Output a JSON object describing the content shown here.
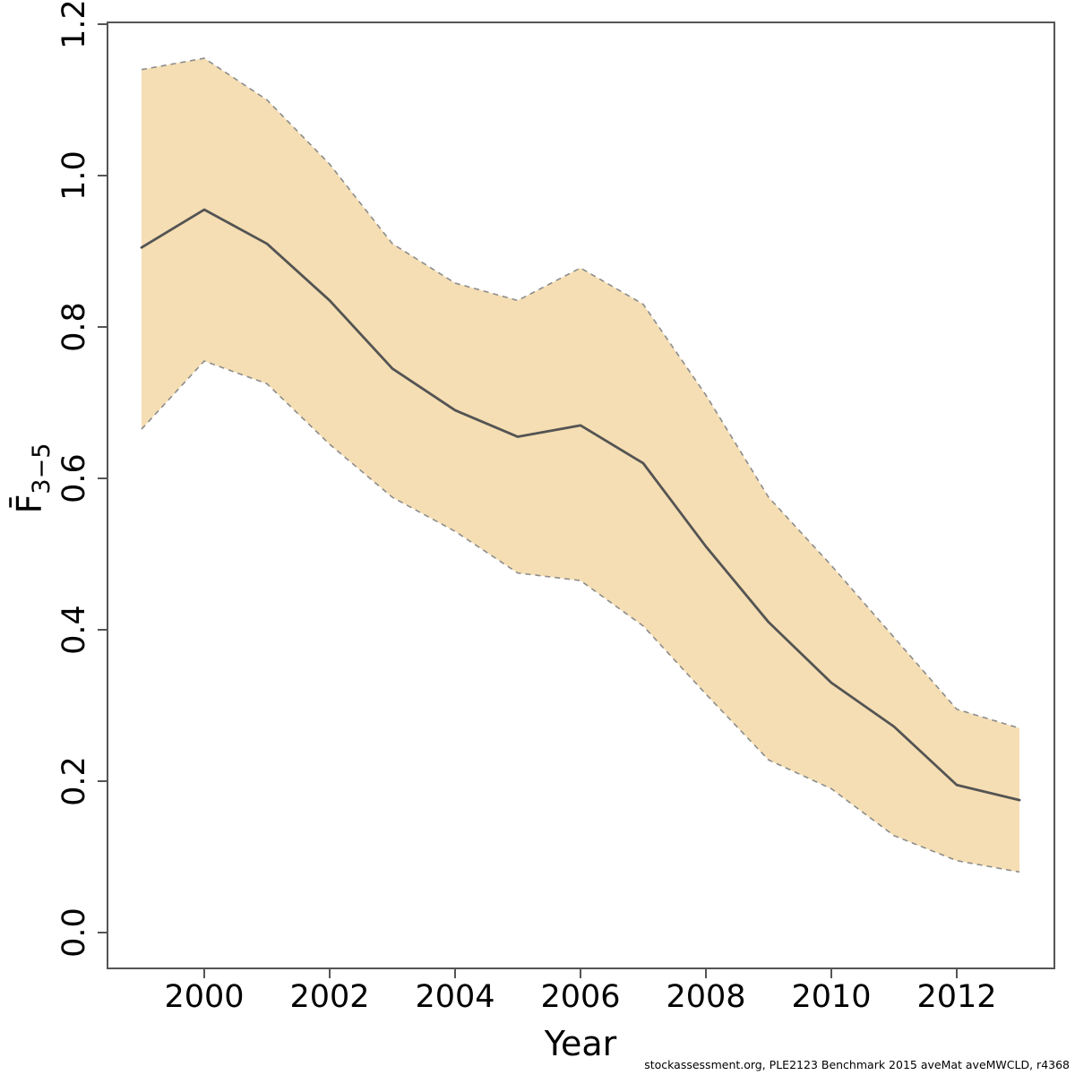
{
  "figure": {
    "footer": "stockassessment.org, PLE2123 Benchmark 2015 aveMat aveMWCLD, r4368"
  },
  "chart_data": {
    "type": "line",
    "title": "",
    "xlabel": "Year",
    "ylabel_base": "F̄",
    "ylabel_sub": "3−5",
    "x": [
      1999,
      2000,
      2001,
      2002,
      2003,
      2004,
      2005,
      2006,
      2007,
      2008,
      2009,
      2010,
      2011,
      2012,
      2013
    ],
    "series": [
      {
        "name": "F_mean",
        "style": "solid",
        "values": [
          0.905,
          0.955,
          0.91,
          0.835,
          0.745,
          0.69,
          0.655,
          0.67,
          0.62,
          0.51,
          0.41,
          0.33,
          0.272,
          0.195,
          0.175
        ]
      },
      {
        "name": "ci_upper",
        "style": "dashed",
        "values": [
          1.14,
          1.155,
          1.1,
          1.015,
          0.91,
          0.858,
          0.835,
          0.878,
          0.83,
          0.71,
          0.575,
          0.485,
          0.39,
          0.295,
          0.27
        ]
      },
      {
        "name": "ci_lower",
        "style": "dashed",
        "values": [
          0.665,
          0.755,
          0.725,
          0.645,
          0.575,
          0.53,
          0.475,
          0.465,
          0.405,
          0.315,
          0.228,
          0.19,
          0.128,
          0.095,
          0.08
        ]
      }
    ],
    "band": {
      "between": [
        "ci_upper",
        "ci_lower"
      ]
    },
    "xticks": {
      "values": [
        2000,
        2002,
        2004,
        2006,
        2008,
        2010,
        2012
      ],
      "labels": [
        "2000",
        "2002",
        "2004",
        "2006",
        "2008",
        "2010",
        "2012"
      ]
    },
    "yticks": {
      "values": [
        0.0,
        0.2,
        0.4,
        0.6,
        0.8,
        1.0,
        1.2
      ],
      "labels": [
        "0.0",
        "0.2",
        "0.4",
        "0.6",
        "0.8",
        "1.0",
        "1.2"
      ]
    },
    "xlim": [
      1999,
      2013
    ],
    "ylim": [
      0.0,
      1.2
    ],
    "grid": false,
    "legend": null,
    "colors": {
      "band_fill": "#f5deb3",
      "band_edge": "#8c8c8c",
      "mean_line": "#545454",
      "axis": "#555555",
      "text": "#000000"
    }
  }
}
